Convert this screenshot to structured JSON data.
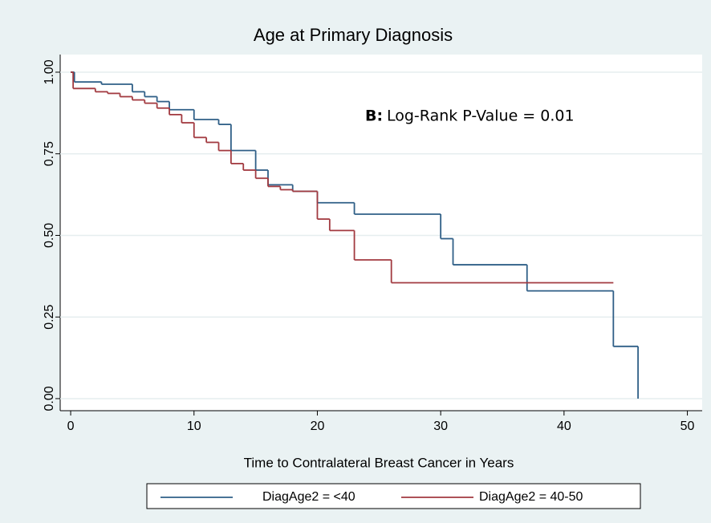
{
  "chart_data": {
    "type": "step",
    "title": "Age at Primary Diagnosis",
    "x_label": "Time to Contralateral Breast Cancer in Years",
    "annotation": {
      "label": "B:",
      "text": "Log-Rank P-Value = 0.01"
    },
    "xlim": [
      -0.85,
      51.2
    ],
    "ylim": [
      -0.037,
      1.054
    ],
    "xticks": [
      0,
      10,
      20,
      30,
      40,
      50
    ],
    "yticks": [
      {
        "value": 0,
        "label": "0.00"
      },
      {
        "value": 0.25,
        "label": "0.25"
      },
      {
        "value": 0.5,
        "label": "0.50"
      },
      {
        "value": 0.75,
        "label": "0.75"
      },
      {
        "value": 1,
        "label": "1.00"
      }
    ],
    "grid": true,
    "legend": "bottom",
    "series": [
      {
        "name": "DiagAge2 = <40",
        "color": "#2f5f87",
        "x": [
          0,
          0.3,
          2.5,
          5,
          6,
          7,
          8,
          10,
          12,
          13,
          15,
          16,
          18,
          20,
          23,
          30,
          31,
          37,
          44,
          46
        ],
        "values": [
          1.0,
          0.97,
          0.963,
          0.94,
          0.925,
          0.91,
          0.885,
          0.855,
          0.84,
          0.76,
          0.7,
          0.655,
          0.635,
          0.6,
          0.565,
          0.49,
          0.41,
          0.33,
          0.16,
          0.0
        ]
      },
      {
        "name": "DiagAge2 = 40-50",
        "color": "#a23a40",
        "x": [
          0,
          0.2,
          2,
          3,
          4,
          5,
          6,
          7,
          8,
          9,
          10,
          11,
          12,
          13,
          14,
          15,
          16,
          17,
          18,
          20,
          21,
          23,
          26,
          44
        ],
        "values": [
          1.0,
          0.95,
          0.94,
          0.935,
          0.925,
          0.915,
          0.905,
          0.89,
          0.87,
          0.845,
          0.8,
          0.785,
          0.76,
          0.72,
          0.7,
          0.675,
          0.65,
          0.64,
          0.635,
          0.55,
          0.515,
          0.425,
          0.355,
          0.355
        ]
      }
    ]
  }
}
